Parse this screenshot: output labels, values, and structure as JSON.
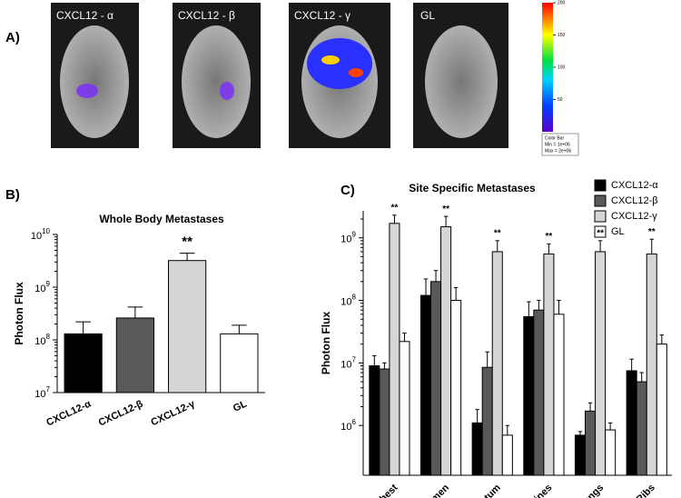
{
  "panel_a": {
    "label": "A)",
    "images": [
      {
        "label": "CXCL12 - α"
      },
      {
        "label": "CXCL12 - β"
      },
      {
        "label": "CXCL12 - γ"
      },
      {
        "label": "GL"
      }
    ],
    "colorbar": {
      "lim": [
        0,
        200
      ],
      "ticks": [
        50,
        100,
        150,
        200
      ],
      "note": [
        "Color Bar",
        "Min = 1e+06",
        "Max = 2e+06"
      ]
    }
  },
  "chart_data": [
    {
      "type": "bar",
      "label": "B)",
      "title": "Whole Body Metastases",
      "y_label": "Photon Flux",
      "log_scale": true,
      "categories": [
        "CXCL12-α",
        "CXCL12-β",
        "CXCL12-γ",
        "GL"
      ],
      "values": [
        130000000,
        260000000,
        3200000000,
        130000000
      ],
      "errors": [
        90000000,
        160000000,
        1200000000,
        60000000
      ],
      "colors": [
        "#000000",
        "#595959",
        "#d6d6d6",
        "#ffffff"
      ],
      "ylim": [
        10000000,
        10000000000
      ],
      "yticks": [
        {
          "value": 10000000,
          "label": "10",
          "exponent": "7"
        },
        {
          "value": 100000000,
          "label": "10",
          "exponent": "8"
        },
        {
          "value": 1000000000,
          "label": "10",
          "exponent": "9"
        },
        {
          "value": 10000000000,
          "label": "10",
          "exponent": "10"
        }
      ],
      "annotations": [
        {
          "text": "**",
          "category": "CXCL12-γ"
        }
      ]
    },
    {
      "type": "grouped_bar",
      "label": "C)",
      "title": "Site Specific Metastases",
      "y_label": "Photon Flux",
      "log_scale": true,
      "categories": [
        "Chest",
        "Abdomen",
        "Omentum",
        "Intestines",
        "Lungs",
        "Ribs"
      ],
      "series": [
        {
          "name": "CXCL12-α",
          "color": "#000000",
          "values": [
            9000000,
            120000000,
            1100000,
            55000000,
            700000,
            7500000
          ],
          "errors": [
            4000000,
            100000000,
            700000,
            40000000,
            100000,
            4000000
          ]
        },
        {
          "name": "CXCL12-β",
          "color": "#595959",
          "values": [
            8000000,
            200000000,
            8500000,
            70000000,
            1700000,
            5000000
          ],
          "errors": [
            2000000,
            100000000,
            6500000,
            30000000,
            600000,
            2000000
          ]
        },
        {
          "name": "CXCL12-γ",
          "color": "#d6d6d6",
          "values": [
            1700000000,
            1500000000,
            600000000,
            550000000,
            600000000,
            550000000
          ],
          "errors": [
            600000000,
            700000000,
            300000000,
            250000000,
            300000000,
            400000000
          ]
        },
        {
          "name": "GL",
          "color": "#ffffff",
          "values": [
            22000000,
            100000000,
            700000,
            60000000,
            850000,
            20000000
          ],
          "errors": [
            8000000,
            60000000,
            300000,
            40000000,
            250000,
            8000000
          ]
        }
      ],
      "ylim": [
        160000,
        2700000000
      ],
      "yticks": [
        {
          "value": 1000000,
          "label": "10",
          "exponent": "6"
        },
        {
          "value": 10000000,
          "label": "10",
          "exponent": "7"
        },
        {
          "value": 100000000,
          "label": "10",
          "exponent": "8"
        },
        {
          "value": 1000000000,
          "label": "10",
          "exponent": "9"
        }
      ],
      "annotations": [
        {
          "text": "**",
          "category": "Chest"
        },
        {
          "text": "**",
          "category": "Abdomen"
        },
        {
          "text": "**",
          "category": "Omentum"
        },
        {
          "text": "**",
          "category": "Intestines"
        },
        {
          "text": "**",
          "category": "Lungs"
        },
        {
          "text": "**",
          "category": "Ribs"
        }
      ]
    }
  ]
}
